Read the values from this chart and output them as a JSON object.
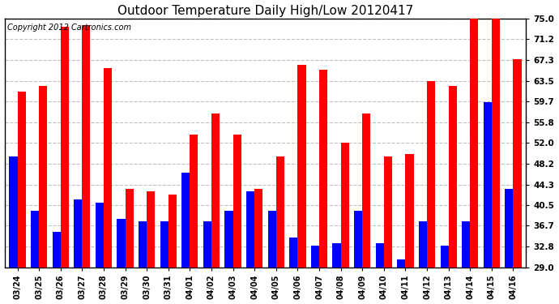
{
  "title": "Outdoor Temperature Daily High/Low 20120417",
  "copyright": "Copyright 2012 Cartronics.com",
  "categories": [
    "03/24",
    "03/25",
    "03/26",
    "03/27",
    "03/28",
    "03/29",
    "03/30",
    "03/31",
    "04/01",
    "04/02",
    "04/03",
    "04/04",
    "04/05",
    "04/06",
    "04/07",
    "04/08",
    "04/09",
    "04/10",
    "04/11",
    "04/12",
    "04/13",
    "04/14",
    "04/15",
    "04/16"
  ],
  "highs": [
    61.5,
    62.5,
    73.5,
    73.8,
    65.8,
    43.5,
    43.0,
    42.5,
    53.5,
    57.5,
    53.5,
    43.5,
    49.5,
    66.5,
    65.5,
    52.0,
    57.5,
    49.5,
    50.0,
    63.5,
    62.5,
    75.5,
    76.5,
    67.5
  ],
  "lows": [
    49.5,
    39.5,
    35.5,
    41.5,
    41.0,
    38.0,
    37.5,
    37.5,
    46.5,
    37.5,
    39.5,
    43.0,
    39.5,
    34.5,
    33.0,
    33.5,
    39.5,
    33.5,
    30.5,
    37.5,
    33.0,
    37.5,
    59.5,
    43.5
  ],
  "high_color": "#ff0000",
  "low_color": "#0000ff",
  "bg_color": "#ffffff",
  "grid_color": "#c0c0c0",
  "yticks": [
    29.0,
    32.8,
    36.7,
    40.5,
    44.3,
    48.2,
    52.0,
    55.8,
    59.7,
    63.5,
    67.3,
    71.2,
    75.0
  ],
  "ymin": 29.0,
  "ymax": 75.0,
  "title_fontsize": 11,
  "copyright_fontsize": 7
}
